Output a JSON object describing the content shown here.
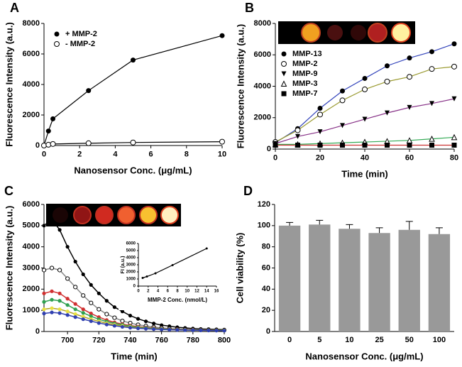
{
  "chart_data": [
    {
      "type": "scatter",
      "panel": "A",
      "xlabel": "Nanosensor Conc. (μg/mL)",
      "ylabel": "Fluorescence Intensity (a.u.)",
      "x": [
        0,
        0.25,
        0.5,
        2.5,
        5,
        10
      ],
      "series": [
        {
          "name": "+ MMP-2",
          "color": "#000000",
          "marker": "circle",
          "line_color": "#000000",
          "values": [
            0,
            950,
            1750,
            3600,
            5600,
            7200
          ]
        },
        {
          "name": "- MMP-2",
          "color": "#000000",
          "marker": "circle-open",
          "line_color": "#000000",
          "values": [
            0,
            50,
            100,
            150,
            200,
            250
          ]
        }
      ],
      "xlim": [
        0,
        10
      ],
      "xticks": [
        0,
        2,
        4,
        6,
        8,
        10
      ],
      "ylim": [
        0,
        8000
      ],
      "yticks": [
        0,
        2000,
        4000,
        6000,
        8000
      ]
    },
    {
      "type": "scatter",
      "panel": "B",
      "xlabel": "Time (min)",
      "ylabel": "Fluorescence Intensity (a.u.)",
      "x": [
        0,
        10,
        20,
        30,
        40,
        50,
        60,
        70,
        80
      ],
      "series": [
        {
          "name": "MMP-13",
          "color": "#000000",
          "marker": "circle",
          "line_color": "#3344bb",
          "values": [
            400,
            1300,
            2600,
            3700,
            4500,
            5300,
            5800,
            6200,
            6700
          ]
        },
        {
          "name": "MMP-2",
          "color": "#000000",
          "marker": "circle-open",
          "line_color": "#9a9a30",
          "values": [
            450,
            1200,
            2200,
            3100,
            3800,
            4300,
            4600,
            5100,
            5250
          ]
        },
        {
          "name": "MMP-9",
          "color": "#000000",
          "marker": "triangle-down",
          "line_color": "#883388",
          "values": [
            350,
            800,
            1100,
            1500,
            1900,
            2300,
            2650,
            2900,
            3200
          ]
        },
        {
          "name": "MMP-3",
          "color": "#000000",
          "marker": "triangle-open",
          "line_color": "#33aa55",
          "values": [
            300,
            300,
            350,
            400,
            450,
            500,
            550,
            650,
            750
          ]
        },
        {
          "name": "MMP-7",
          "color": "#000000",
          "marker": "square",
          "line_color": "#cc3333",
          "values": [
            250,
            250,
            250,
            250,
            250,
            250,
            250,
            250,
            250
          ]
        }
      ],
      "xlim": [
        0,
        80
      ],
      "xticks": [
        0,
        20,
        40,
        60,
        80
      ],
      "ylim": [
        0,
        8000
      ],
      "yticks": [
        0,
        2000,
        4000,
        6000,
        8000
      ]
    },
    {
      "type": "line",
      "panel": "C",
      "xlabel": "Time (min)",
      "ylabel": "Fluorescence Intensity (a.u.)",
      "x": [
        685,
        690,
        695,
        700,
        705,
        710,
        715,
        720,
        725,
        730,
        735,
        740,
        745,
        750,
        755,
        760,
        765,
        770,
        775,
        780,
        785,
        790,
        795,
        800
      ],
      "series": [
        {
          "color": "#000000",
          "marker": "circle",
          "line_color": "#000000",
          "values": [
            5000,
            5300,
            4800,
            4000,
            3300,
            2700,
            2200,
            1800,
            1450,
            1150,
            950,
            750,
            600,
            480,
            380,
            300,
            250,
            200,
            170,
            140,
            120,
            110,
            100,
            90
          ]
        },
        {
          "color": "#000000",
          "marker": "circle-open",
          "line_color": "#888888",
          "values": [
            2900,
            3000,
            2900,
            2500,
            2100,
            1700,
            1350,
            1050,
            820,
            650,
            500,
            400,
            320,
            260,
            210,
            170,
            140,
            120,
            100,
            90,
            80,
            70,
            65,
            60
          ]
        },
        {
          "color": "#d03030",
          "marker": "circle",
          "line_color": "#d03030",
          "values": [
            1800,
            1900,
            1800,
            1550,
            1300,
            1050,
            850,
            680,
            540,
            430,
            350,
            280,
            230,
            190,
            160,
            130,
            110,
            100,
            90,
            80,
            70,
            65,
            60,
            55
          ]
        },
        {
          "color": "#30a050",
          "marker": "circle",
          "line_color": "#30a050",
          "values": [
            1400,
            1500,
            1450,
            1250,
            1050,
            880,
            720,
            580,
            470,
            380,
            310,
            250,
            200,
            170,
            140,
            120,
            100,
            90,
            80,
            70,
            65,
            60,
            55,
            50
          ]
        },
        {
          "color": "#e8e040",
          "marker": "circle",
          "line_color": "#b0a020",
          "values": [
            1050,
            1100,
            1050,
            950,
            820,
            700,
            580,
            480,
            390,
            320,
            260,
            210,
            170,
            140,
            120,
            100,
            90,
            80,
            70,
            65,
            60,
            55,
            50,
            45
          ]
        },
        {
          "color": "#3040b0",
          "marker": "circle",
          "line_color": "#3040b0",
          "values": [
            850,
            900,
            870,
            780,
            680,
            580,
            490,
            400,
            330,
            270,
            220,
            180,
            150,
            130,
            110,
            95,
            85,
            75,
            65,
            60,
            55,
            50,
            45,
            40
          ]
        }
      ],
      "xlim": [
        685,
        800
      ],
      "xticks": [
        700,
        720,
        740,
        760,
        780,
        800
      ],
      "ylim": [
        0,
        6000
      ],
      "yticks": [
        0,
        1000,
        2000,
        3000,
        4000,
        5000,
        6000
      ]
    },
    {
      "type": "bar",
      "panel": "D",
      "xlabel": "Nanosensor Conc. (μg/mL)",
      "ylabel": "Cell viability (%)",
      "categories": [
        "0",
        "5",
        "10",
        "25",
        "50",
        "100"
      ],
      "values": [
        100,
        101,
        97,
        93,
        96,
        92
      ],
      "errors": [
        3,
        4,
        4,
        5,
        8,
        6
      ],
      "color": "#999999",
      "ylim": [
        0,
        120
      ],
      "yticks": [
        0,
        20,
        40,
        60,
        80,
        100,
        120
      ]
    },
    {
      "type": "scatter",
      "xlabel": "MMP-2 Conc. (nmol/L)",
      "ylabel": "FI (a.u.)",
      "x": [
        0.875,
        1.75,
        3.5,
        7,
        14
      ],
      "series": [
        {
          "color": "#000000",
          "marker": "circle",
          "line_color": "#000000",
          "values": [
            1150,
            1350,
            1800,
            2950,
            5300
          ]
        }
      ],
      "xlim": [
        0,
        16
      ],
      "xticks": [
        0,
        2,
        4,
        6,
        8,
        10,
        12,
        14,
        16
      ],
      "ylim": [
        0,
        6000
      ],
      "yticks": [
        0,
        1000,
        2000,
        3000,
        4000,
        5000,
        6000
      ]
    }
  ]
}
